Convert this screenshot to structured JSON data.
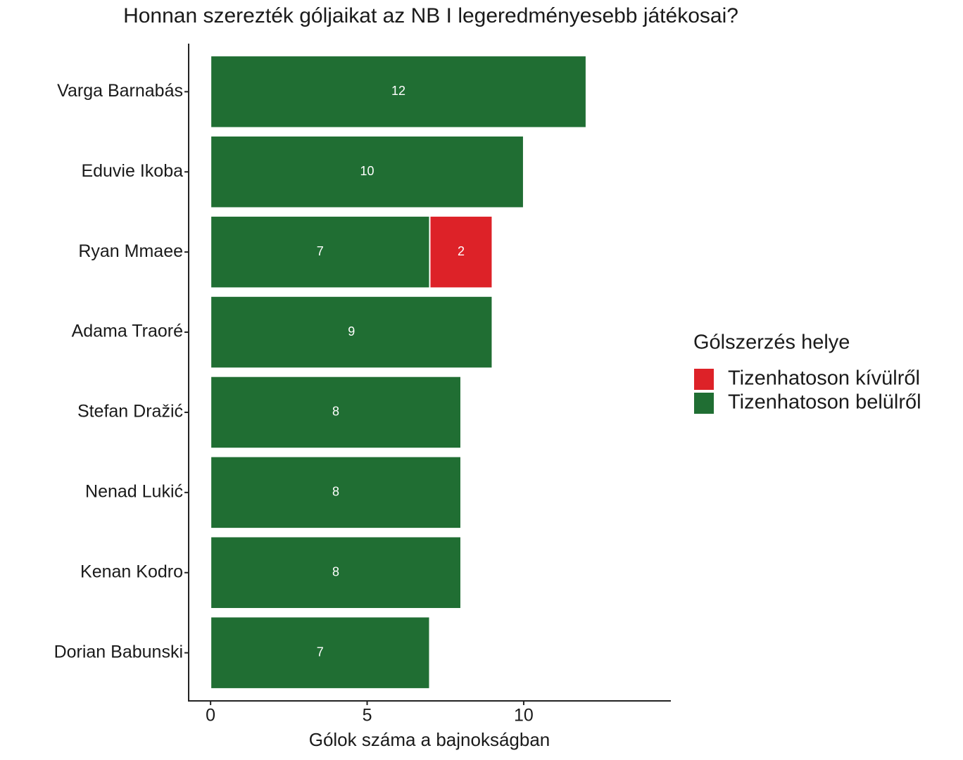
{
  "chart_data": {
    "type": "bar",
    "orientation": "horizontal",
    "stacked": true,
    "title": "Honnan szerezték góljaikat az NB I legeredményesebb játékosai?",
    "x_label": "Gólok száma a bajnokságban",
    "legend_title": "Gólszerzés helye",
    "categories": [
      "Varga Barnabás",
      "Eduvie Ikoba",
      "Ryan Mmaee",
      "Adama Traoré",
      "Stefan Dražić",
      "Nenad Lukić",
      "Kenan Kodro",
      "Dorian Babunski"
    ],
    "series": [
      {
        "name": "Tizenhatoson kívülről",
        "color": "#dd2228",
        "values": [
          null,
          null,
          2,
          null,
          null,
          null,
          null,
          null
        ]
      },
      {
        "name": "Tizenhatoson belülről",
        "color": "#206e33",
        "values": [
          12,
          10,
          7,
          9,
          8,
          8,
          8,
          7
        ]
      }
    ],
    "xlim": [
      -0.7,
      14.7
    ],
    "xticks": [
      0,
      5,
      10
    ],
    "grid": false,
    "legend": "right"
  }
}
